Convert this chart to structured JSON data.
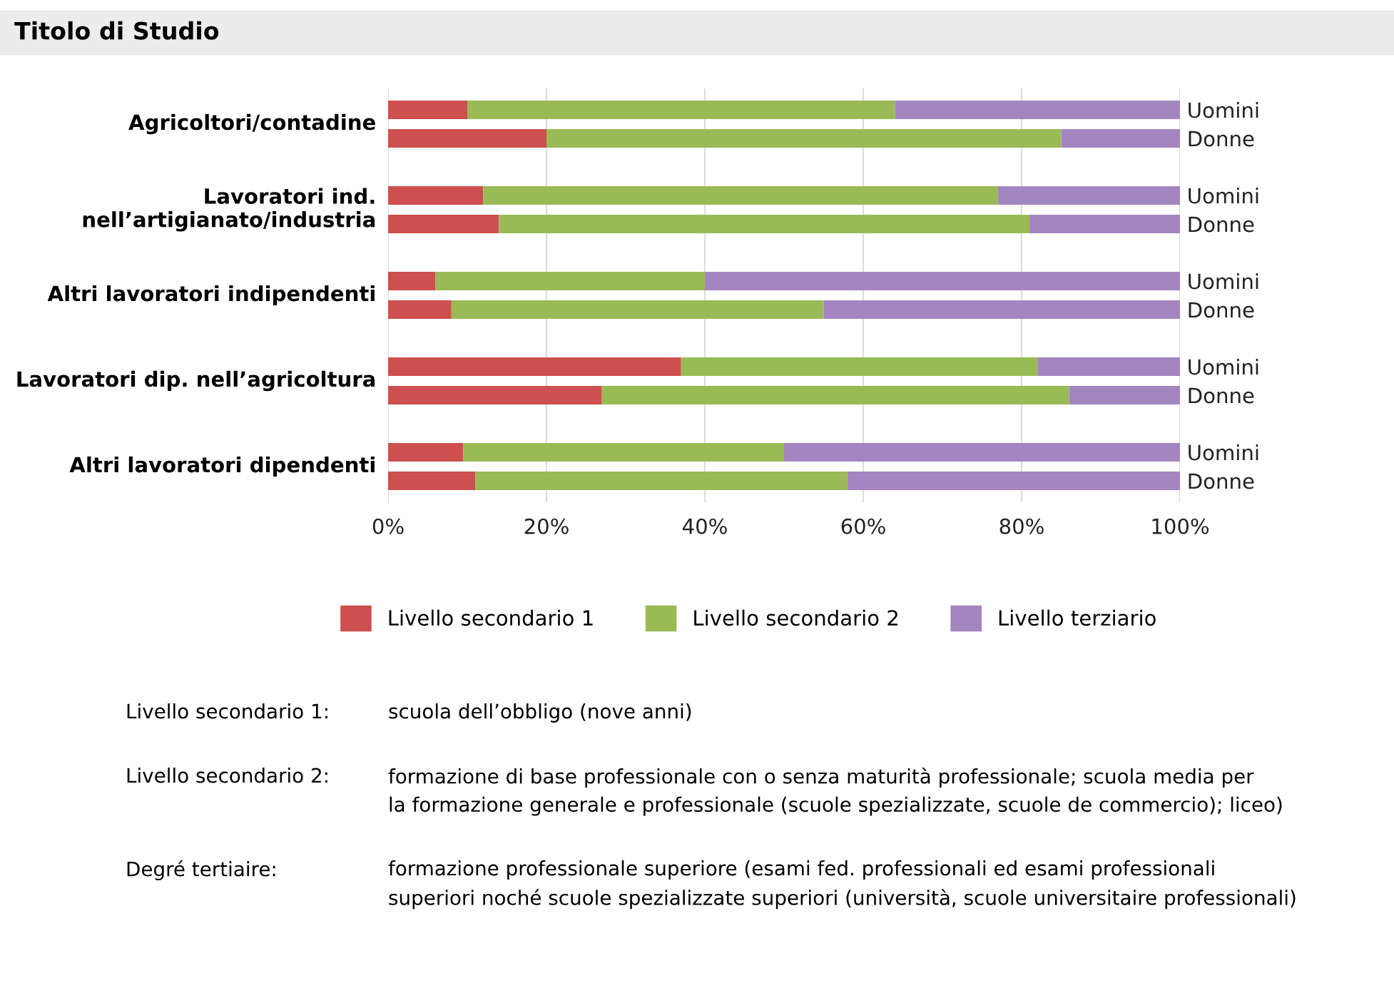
{
  "chart_data": {
    "type": "bar",
    "orientation": "horizontal",
    "stacked": true,
    "title": "Titolo di Studio",
    "categories": [
      "Uomini",
      "Donne",
      "Uomini",
      "Donne",
      "Uomini",
      "Donne",
      "Uomini",
      "Donne",
      "Uomini",
      "Donne"
    ],
    "series": [
      {
        "name": "Livello secondario 1",
        "color": "#cd4f4f",
        "values": [
          10,
          20,
          12,
          14,
          6,
          8,
          37,
          27,
          9.5,
          11
        ]
      },
      {
        "name": "Livello secondario 2",
        "color": "#9aba55",
        "values": [
          54,
          65,
          65,
          67,
          34,
          47,
          45,
          59,
          40.5,
          47
        ]
      },
      {
        "name": "Livello terziario",
        "color": "#a386bf",
        "values": [
          36,
          15,
          23,
          19,
          60,
          45,
          18,
          14,
          50,
          42
        ]
      }
    ],
    "xlim": [
      0,
      100
    ],
    "xticks": [
      {
        "value": 0,
        "label": "0%"
      },
      {
        "value": 20,
        "label": "20%"
      },
      {
        "value": 40,
        "label": "40%"
      },
      {
        "value": 60,
        "label": "60%"
      },
      {
        "value": 80,
        "label": "80%"
      },
      {
        "value": 100,
        "label": "100%"
      }
    ],
    "grid": "x",
    "legend": "bottom",
    "annotations": [
      "Agricoltori/contadine",
      "Lavoratori ind.\nnell’artigianato/industria",
      "Altri lavoratori indipendenti",
      "Lavoratori dip. nell’agricoltura",
      "Altri lavoratori dipendenti",
      "Livello secondario 1:",
      "scuola dell’obbligo (nove anni)",
      "Livello secondario 2:",
      "formazione di base professionale con o senza maturità professionale; scuola media per\nla formazione generale e professionale (scuole spezializzate, scuole de commercio); liceo)",
      "Degré tertiaire:",
      "formazione professionale superiore (esami fed. professionali ed esami professionali\nsuperiori noché scuole spezializzate superiori (università, scuole universitaire professionali)"
    ]
  }
}
